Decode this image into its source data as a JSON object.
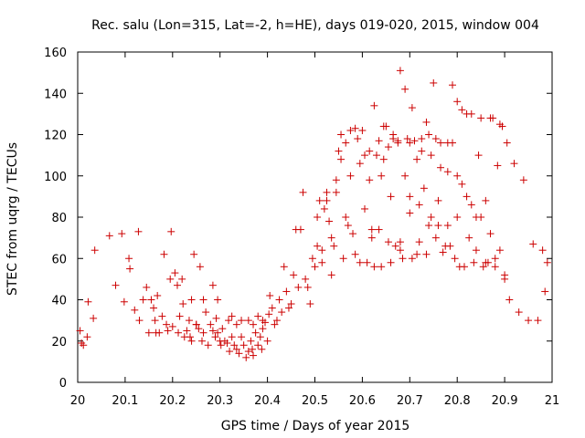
{
  "chart_data": {
    "type": "scatter",
    "title": "Rec. salu (Lon=315, Lat=-2, h=HE), days 019-020, 2015, window 004",
    "xlabel": "GPS time / Days of year 2015",
    "ylabel": "STEC from uqrg / TECUs",
    "xlim": [
      20,
      21
    ],
    "ylim": [
      0,
      160
    ],
    "xticks": [
      "20",
      "20.1",
      "20.2",
      "20.3",
      "20.4",
      "20.5",
      "20.6",
      "20.7",
      "20.8",
      "20.9",
      "21"
    ],
    "yticks": [
      "0",
      "20",
      "40",
      "60",
      "80",
      "100",
      "120",
      "140",
      "160"
    ],
    "grid": false,
    "legend": "none",
    "marker": "plus",
    "marker_color": "#cc0000",
    "points": [
      [
        20.005,
        25
      ],
      [
        20.008,
        19
      ],
      [
        20.012,
        18
      ],
      [
        20.02,
        22
      ],
      [
        20.022,
        39
      ],
      [
        20.033,
        31
      ],
      [
        20.036,
        64
      ],
      [
        20.067,
        71
      ],
      [
        20.08,
        47
      ],
      [
        20.093,
        72
      ],
      [
        20.098,
        39
      ],
      [
        20.108,
        60
      ],
      [
        20.11,
        55
      ],
      [
        20.12,
        35
      ],
      [
        20.128,
        73
      ],
      [
        20.13,
        30
      ],
      [
        20.138,
        40
      ],
      [
        20.145,
        46
      ],
      [
        20.15,
        24
      ],
      [
        20.155,
        40
      ],
      [
        20.16,
        36
      ],
      [
        20.163,
        30
      ],
      [
        20.165,
        24
      ],
      [
        20.168,
        42
      ],
      [
        20.172,
        24
      ],
      [
        20.178,
        32
      ],
      [
        20.182,
        62
      ],
      [
        20.187,
        28
      ],
      [
        20.19,
        25
      ],
      [
        20.195,
        50
      ],
      [
        20.197,
        73
      ],
      [
        20.2,
        27
      ],
      [
        20.205,
        53
      ],
      [
        20.21,
        47
      ],
      [
        20.212,
        24
      ],
      [
        20.215,
        32
      ],
      [
        20.22,
        50
      ],
      [
        20.225,
        22
      ],
      [
        20.23,
        25
      ],
      [
        20.235,
        30
      ],
      [
        20.237,
        22
      ],
      [
        20.24,
        20
      ],
      [
        20.245,
        62
      ],
      [
        20.25,
        28
      ],
      [
        20.255,
        26
      ],
      [
        20.258,
        56
      ],
      [
        20.262,
        20
      ],
      [
        20.265,
        24
      ],
      [
        20.27,
        34
      ],
      [
        20.275,
        18
      ],
      [
        20.28,
        28
      ],
      [
        20.285,
        25
      ],
      [
        20.29,
        22
      ],
      [
        20.292,
        31
      ],
      [
        20.295,
        24
      ],
      [
        20.3,
        20
      ],
      [
        20.302,
        18
      ],
      [
        20.305,
        26
      ],
      [
        20.31,
        20
      ],
      [
        20.315,
        19
      ],
      [
        20.318,
        30
      ],
      [
        20.32,
        15
      ],
      [
        20.325,
        22
      ],
      [
        20.33,
        18
      ],
      [
        20.335,
        16
      ],
      [
        20.34,
        14
      ],
      [
        20.345,
        22
      ],
      [
        20.35,
        18
      ],
      [
        20.355,
        12
      ],
      [
        20.36,
        15
      ],
      [
        20.365,
        20
      ],
      [
        20.368,
        16
      ],
      [
        20.37,
        13
      ],
      [
        20.375,
        24
      ],
      [
        20.38,
        18
      ],
      [
        20.385,
        22
      ],
      [
        20.388,
        16
      ],
      [
        20.39,
        26
      ],
      [
        20.395,
        29
      ],
      [
        20.4,
        20
      ],
      [
        20.403,
        33
      ],
      [
        20.222,
        38
      ],
      [
        20.24,
        40
      ],
      [
        20.25,
        28
      ],
      [
        20.265,
        40
      ],
      [
        20.285,
        47
      ],
      [
        20.295,
        40
      ],
      [
        20.325,
        32
      ],
      [
        20.335,
        28
      ],
      [
        20.345,
        30
      ],
      [
        20.36,
        30
      ],
      [
        20.37,
        28
      ],
      [
        20.38,
        32
      ],
      [
        20.39,
        30
      ],
      [
        20.405,
        42
      ],
      [
        20.41,
        36
      ],
      [
        20.415,
        28
      ],
      [
        20.42,
        30
      ],
      [
        20.425,
        40
      ],
      [
        20.43,
        34
      ],
      [
        20.435,
        56
      ],
      [
        20.44,
        44
      ],
      [
        20.445,
        36
      ],
      [
        20.45,
        38
      ],
      [
        20.455,
        52
      ],
      [
        20.46,
        74
      ],
      [
        20.465,
        46
      ],
      [
        20.47,
        74
      ],
      [
        20.475,
        92
      ],
      [
        20.48,
        50
      ],
      [
        20.485,
        46
      ],
      [
        20.49,
        38
      ],
      [
        20.495,
        60
      ],
      [
        20.5,
        56
      ],
      [
        20.505,
        66
      ],
      [
        20.51,
        88
      ],
      [
        20.515,
        58
      ],
      [
        20.52,
        84
      ],
      [
        20.525,
        88
      ],
      [
        20.53,
        78
      ],
      [
        20.535,
        52
      ],
      [
        20.54,
        66
      ],
      [
        20.545,
        98
      ],
      [
        20.55,
        112
      ],
      [
        20.555,
        108
      ],
      [
        20.56,
        60
      ],
      [
        20.565,
        80
      ],
      [
        20.57,
        76
      ],
      [
        20.575,
        122
      ],
      [
        20.58,
        72
      ],
      [
        20.585,
        62
      ],
      [
        20.59,
        118
      ],
      [
        20.595,
        58
      ],
      [
        20.6,
        122
      ],
      [
        20.605,
        84
      ],
      [
        20.61,
        58
      ],
      [
        20.615,
        112
      ],
      [
        20.62,
        74
      ],
      [
        20.625,
        56
      ],
      [
        20.63,
        110
      ],
      [
        20.635,
        74
      ],
      [
        20.64,
        56
      ],
      [
        20.645,
        108
      ],
      [
        20.65,
        124
      ],
      [
        20.655,
        68
      ],
      [
        20.66,
        58
      ],
      [
        20.665,
        120
      ],
      [
        20.67,
        66
      ],
      [
        20.675,
        116
      ],
      [
        20.68,
        68
      ],
      [
        20.685,
        60
      ],
      [
        20.69,
        100
      ],
      [
        20.695,
        118
      ],
      [
        20.7,
        82
      ],
      [
        20.705,
        60
      ],
      [
        20.71,
        117
      ],
      [
        20.715,
        62
      ],
      [
        20.72,
        68
      ],
      [
        20.725,
        112
      ],
      [
        20.73,
        94
      ],
      [
        20.735,
        62
      ],
      [
        20.74,
        120
      ],
      [
        20.745,
        80
      ],
      [
        20.75,
        145
      ],
      [
        20.755,
        70
      ],
      [
        20.76,
        88
      ],
      [
        20.765,
        116
      ],
      [
        20.77,
        63
      ],
      [
        20.775,
        66
      ],
      [
        20.78,
        102
      ],
      [
        20.785,
        66
      ],
      [
        20.79,
        144
      ],
      [
        20.795,
        60
      ],
      [
        20.8,
        100
      ],
      [
        20.805,
        56
      ],
      [
        20.81,
        96
      ],
      [
        20.815,
        56
      ],
      [
        20.82,
        130
      ],
      [
        20.825,
        70
      ],
      [
        20.83,
        86
      ],
      [
        20.835,
        58
      ],
      [
        20.84,
        64
      ],
      [
        20.845,
        110
      ],
      [
        20.85,
        80
      ],
      [
        20.855,
        56
      ],
      [
        20.86,
        88
      ],
      [
        20.865,
        58
      ],
      [
        20.87,
        72
      ],
      [
        20.875,
        128
      ],
      [
        20.88,
        60
      ],
      [
        20.885,
        105
      ],
      [
        20.89,
        64
      ],
      [
        20.895,
        124
      ],
      [
        20.9,
        50
      ],
      [
        20.905,
        116
      ],
      [
        20.91,
        40
      ],
      [
        20.92,
        106
      ],
      [
        20.93,
        34
      ],
      [
        20.94,
        98
      ],
      [
        20.95,
        30
      ],
      [
        20.96,
        67
      ],
      [
        20.97,
        30
      ],
      [
        20.98,
        64
      ],
      [
        20.985,
        44
      ],
      [
        20.99,
        58
      ],
      [
        20.505,
        80
      ],
      [
        20.515,
        64
      ],
      [
        20.525,
        92
      ],
      [
        20.535,
        70
      ],
      [
        20.545,
        92
      ],
      [
        20.555,
        120
      ],
      [
        20.565,
        116
      ],
      [
        20.575,
        100
      ],
      [
        20.585,
        123
      ],
      [
        20.595,
        106
      ],
      [
        20.605,
        110
      ],
      [
        20.615,
        98
      ],
      [
        20.625,
        134
      ],
      [
        20.635,
        117
      ],
      [
        20.645,
        124
      ],
      [
        20.655,
        114
      ],
      [
        20.665,
        118
      ],
      [
        20.675,
        117
      ],
      [
        20.68,
        151
      ],
      [
        20.69,
        142
      ],
      [
        20.7,
        116
      ],
      [
        20.705,
        133
      ],
      [
        20.715,
        108
      ],
      [
        20.725,
        118
      ],
      [
        20.735,
        126
      ],
      [
        20.745,
        110
      ],
      [
        20.755,
        118
      ],
      [
        20.765,
        104
      ],
      [
        20.78,
        116
      ],
      [
        20.79,
        116
      ],
      [
        20.8,
        136
      ],
      [
        20.81,
        132
      ],
      [
        20.83,
        130
      ],
      [
        20.85,
        128
      ],
      [
        20.87,
        128
      ],
      [
        20.89,
        125
      ],
      [
        20.62,
        70
      ],
      [
        20.64,
        100
      ],
      [
        20.66,
        90
      ],
      [
        20.68,
        64
      ],
      [
        20.7,
        90
      ],
      [
        20.72,
        86
      ],
      [
        20.74,
        76
      ],
      [
        20.76,
        76
      ],
      [
        20.78,
        76
      ],
      [
        20.8,
        80
      ],
      [
        20.82,
        90
      ],
      [
        20.84,
        80
      ],
      [
        20.86,
        58
      ],
      [
        20.88,
        56
      ],
      [
        20.9,
        52
      ]
    ]
  }
}
